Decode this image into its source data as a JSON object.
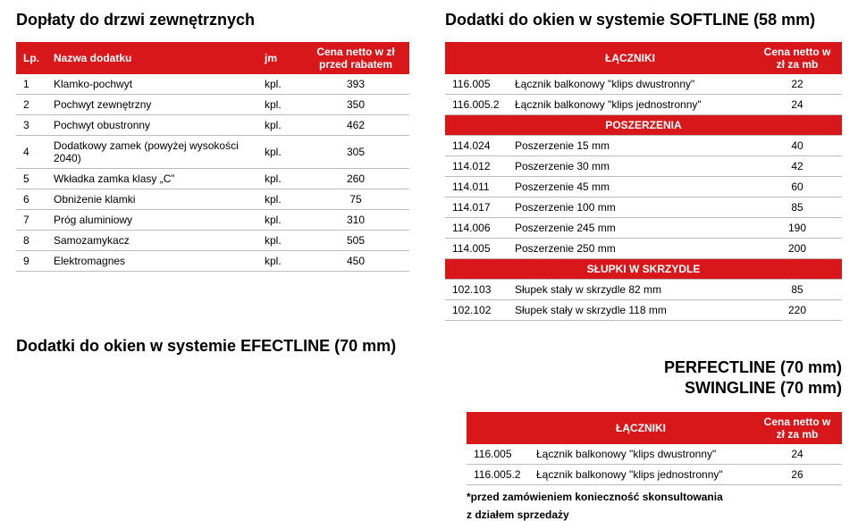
{
  "left": {
    "title": "Dopłaty do drzwi zewnętrznych",
    "headers": {
      "lp": "Lp.",
      "name": "Nazwa dodatku",
      "jm": "jm",
      "price": "Cena netto  w zł przed rabatem"
    },
    "rows": [
      {
        "i": "1",
        "name": "Klamko-pochwyt",
        "jm": "kpl.",
        "price": "393"
      },
      {
        "i": "2",
        "name": "Pochwyt zewnętrzny",
        "jm": "kpl.",
        "price": "350"
      },
      {
        "i": "3",
        "name": "Pochwyt obustronny",
        "jm": "kpl.",
        "price": "462"
      },
      {
        "i": "4",
        "name": "Dodatkowy zamek (powyżej wysokości 2040)",
        "jm": "kpl.",
        "price": "305"
      },
      {
        "i": "5",
        "name": "Wkładka zamka klasy „C”",
        "jm": "kpl.",
        "price": "260"
      },
      {
        "i": "6",
        "name": "Obniżenie klamki",
        "jm": "kpl.",
        "price": "75"
      },
      {
        "i": "7",
        "name": "Próg aluminiowy",
        "jm": "kpl.",
        "price": "310"
      },
      {
        "i": "8",
        "name": "Samozamykacz",
        "jm": "kpl.",
        "price": "505"
      },
      {
        "i": "9",
        "name": "Elektromagnes",
        "jm": "kpl.",
        "price": "450"
      }
    ]
  },
  "right": {
    "title": "Dodatki do okien w systemie SOFTLINE (58 mm)",
    "hdr_name": "ŁĄCZNIKI",
    "hdr_price": "Cena netto w zł za mb",
    "sec_posz": "POSZERZENIA",
    "sec_slup": "SŁUPKI W SKRZYDLE",
    "l_rows": [
      {
        "code": "116.005",
        "name": "Łącznik balkonowy \"klips dwustronny\"",
        "val": "22"
      },
      {
        "code": "116.005.2",
        "name": "Łącznik balkonowy \"klips jednostronny\"",
        "val": "24"
      }
    ],
    "p_rows": [
      {
        "code": "114.024",
        "name": "Poszerzenie 15 mm",
        "val": "40"
      },
      {
        "code": "114.012",
        "name": "Poszerzenie 30 mm",
        "val": "42"
      },
      {
        "code": "114.011",
        "name": "Poszerzenie 45 mm",
        "val": "60"
      },
      {
        "code": "114.017",
        "name": "Poszerzenie 100 mm",
        "val": "85"
      },
      {
        "code": "114.006",
        "name": "Poszerzenie 245 mm",
        "val": "190"
      },
      {
        "code": "114.005",
        "name": "Poszerzenie 250 mm",
        "val": "200"
      }
    ],
    "s_rows": [
      {
        "code": "102.103",
        "name": "Słupek stały w skrzydle 82 mm",
        "val": "85"
      },
      {
        "code": "102.102",
        "name": "Słupek stały w skrzydle 118 mm",
        "val": "220"
      }
    ]
  },
  "bottom": {
    "title": "Dodatki do okien w systemie EFECTLINE (70 mm)",
    "sub1": "PERFECTLINE (70 mm)",
    "sub2": "SWINGLINE  (70 mm)",
    "hdr_name": "ŁĄCZNIKI",
    "hdr_price": "Cena netto w zł za mb",
    "rows": [
      {
        "code": "116.005",
        "name": "Łącznik balkonowy \"klips dwustronny\"",
        "val": "24"
      },
      {
        "code": "116.005.2",
        "name": "Łącznik balkonowy \"klips jednostronny\"",
        "val": "26"
      }
    ],
    "note1": "*przed zamówieniem konieczność skonsultowania",
    "note2": "  z działem sprzedaży"
  },
  "colors": {
    "accent": "#d8171b",
    "border": "#bdbdbd"
  }
}
